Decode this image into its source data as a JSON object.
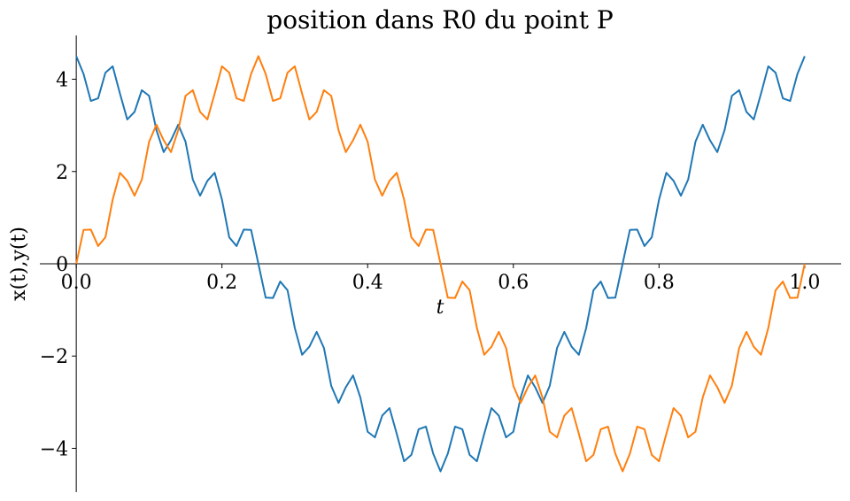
{
  "chart_data": {
    "type": "line",
    "title": "position dans R0 du point P",
    "xlabel": "t",
    "ylabel": "x(t),y(t)",
    "xlim": [
      -0.05,
      1.05
    ],
    "ylim": [
      -4.95,
      4.95
    ],
    "xticks": [
      {
        "value": 0,
        "label": "0.0"
      },
      {
        "value": 0.2,
        "label": "0.2"
      },
      {
        "value": 0.4,
        "label": "0.4"
      },
      {
        "value": 0.6,
        "label": "0.6"
      },
      {
        "value": 0.8,
        "label": "0.8"
      },
      {
        "value": 1,
        "label": "1.0"
      }
    ],
    "yticks": [
      {
        "value": -4,
        "label": "−4"
      },
      {
        "value": -2,
        "label": "−2"
      },
      0,
      2,
      4
    ],
    "x": [
      0,
      0.01,
      0.02,
      0.03,
      0.04,
      0.05,
      0.06,
      0.07,
      0.08,
      0.09,
      0.1,
      0.11,
      0.12,
      0.13,
      0.14,
      0.15,
      0.16,
      0.17,
      0.18,
      0.19,
      0.2,
      0.21,
      0.22,
      0.23,
      0.24,
      0.25,
      0.26,
      0.27,
      0.28,
      0.29,
      0.3,
      0.31,
      0.32,
      0.33,
      0.34,
      0.35,
      0.36,
      0.37,
      0.38,
      0.39,
      0.4,
      0.41,
      0.42,
      0.43,
      0.44,
      0.45,
      0.46,
      0.47,
      0.48,
      0.49,
      0.5,
      0.51,
      0.52,
      0.53,
      0.54,
      0.55,
      0.56,
      0.57,
      0.58,
      0.59,
      0.6,
      0.61,
      0.62,
      0.63,
      0.64,
      0.65,
      0.66,
      0.67,
      0.68,
      0.69,
      0.7,
      0.71,
      0.72,
      0.73,
      0.74,
      0.75,
      0.76,
      0.77,
      0.78,
      0.79,
      0.8,
      0.81,
      0.82,
      0.83,
      0.84,
      0.85,
      0.86,
      0.87,
      0.88,
      0.89,
      0.9,
      0.91,
      0.92,
      0.93,
      0.94,
      0.95,
      0.96,
      0.97,
      0.98,
      0.99,
      1
    ],
    "series": [
      {
        "color": "#1f77b4",
        "values": [
          4.5,
          4.116,
          3.53,
          3.587,
          4.142,
          4.28,
          3.688,
          3.128,
          3.292,
          3.763,
          3.641,
          2.898,
          2.42,
          2.676,
          3.015,
          2.645,
          1.825,
          1.475,
          1.797,
          1.972,
          1.391,
          0.573,
          0.385,
          0.742,
          0.735,
          0,
          -0.735,
          -0.742,
          -0.385,
          -0.573,
          -1.391,
          -1.972,
          -1.797,
          -1.475,
          -1.825,
          -2.645,
          -3.015,
          -2.676,
          -2.42,
          -2.898,
          -3.641,
          -3.763,
          -3.292,
          -3.128,
          -3.688,
          -4.28,
          -4.142,
          -3.587,
          -3.53,
          -4.116,
          -4.5,
          -4.116,
          -3.53,
          -3.587,
          -4.142,
          -4.28,
          -3.688,
          -3.128,
          -3.292,
          -3.763,
          -3.641,
          -2.898,
          -2.42,
          -2.676,
          -3.015,
          -2.645,
          -1.825,
          -1.475,
          -1.797,
          -1.972,
          -1.391,
          -0.573,
          -0.385,
          -0.742,
          -0.735,
          0,
          0.735,
          0.742,
          0.385,
          0.573,
          1.391,
          1.972,
          1.797,
          1.475,
          1.825,
          2.645,
          3.015,
          2.676,
          2.42,
          2.898,
          3.641,
          3.763,
          3.292,
          3.128,
          3.688,
          4.28,
          4.142,
          3.587,
          3.53,
          4.116,
          4.5
        ]
      },
      {
        "color": "#ff7f0e",
        "values": [
          0,
          0.735,
          0.742,
          0.385,
          0.573,
          1.391,
          1.972,
          1.797,
          1.475,
          1.825,
          2.645,
          3.015,
          2.676,
          2.42,
          2.898,
          3.641,
          3.763,
          3.292,
          3.128,
          3.688,
          4.28,
          4.142,
          3.587,
          3.53,
          4.116,
          4.5,
          4.116,
          3.53,
          3.587,
          4.142,
          4.28,
          3.688,
          3.128,
          3.292,
          3.763,
          3.641,
          2.898,
          2.42,
          2.676,
          3.015,
          2.645,
          1.825,
          1.475,
          1.797,
          1.972,
          1.391,
          0.573,
          0.385,
          0.742,
          0.735,
          0,
          -0.735,
          -0.742,
          -0.385,
          -0.573,
          -1.391,
          -1.972,
          -1.797,
          -1.475,
          -1.825,
          -2.645,
          -3.015,
          -2.676,
          -2.42,
          -2.898,
          -3.641,
          -3.763,
          -3.292,
          -3.128,
          -3.688,
          -4.28,
          -4.142,
          -3.587,
          -3.53,
          -4.116,
          -4.5,
          -4.116,
          -3.53,
          -3.587,
          -4.142,
          -4.28,
          -3.688,
          -3.128,
          -3.292,
          -3.763,
          -3.641,
          -2.898,
          -2.42,
          -2.676,
          -3.015,
          -2.645,
          -1.825,
          -1.475,
          -1.797,
          -1.972,
          -1.391,
          -0.573,
          -0.385,
          -0.742,
          -0.735,
          0
        ]
      }
    ]
  }
}
